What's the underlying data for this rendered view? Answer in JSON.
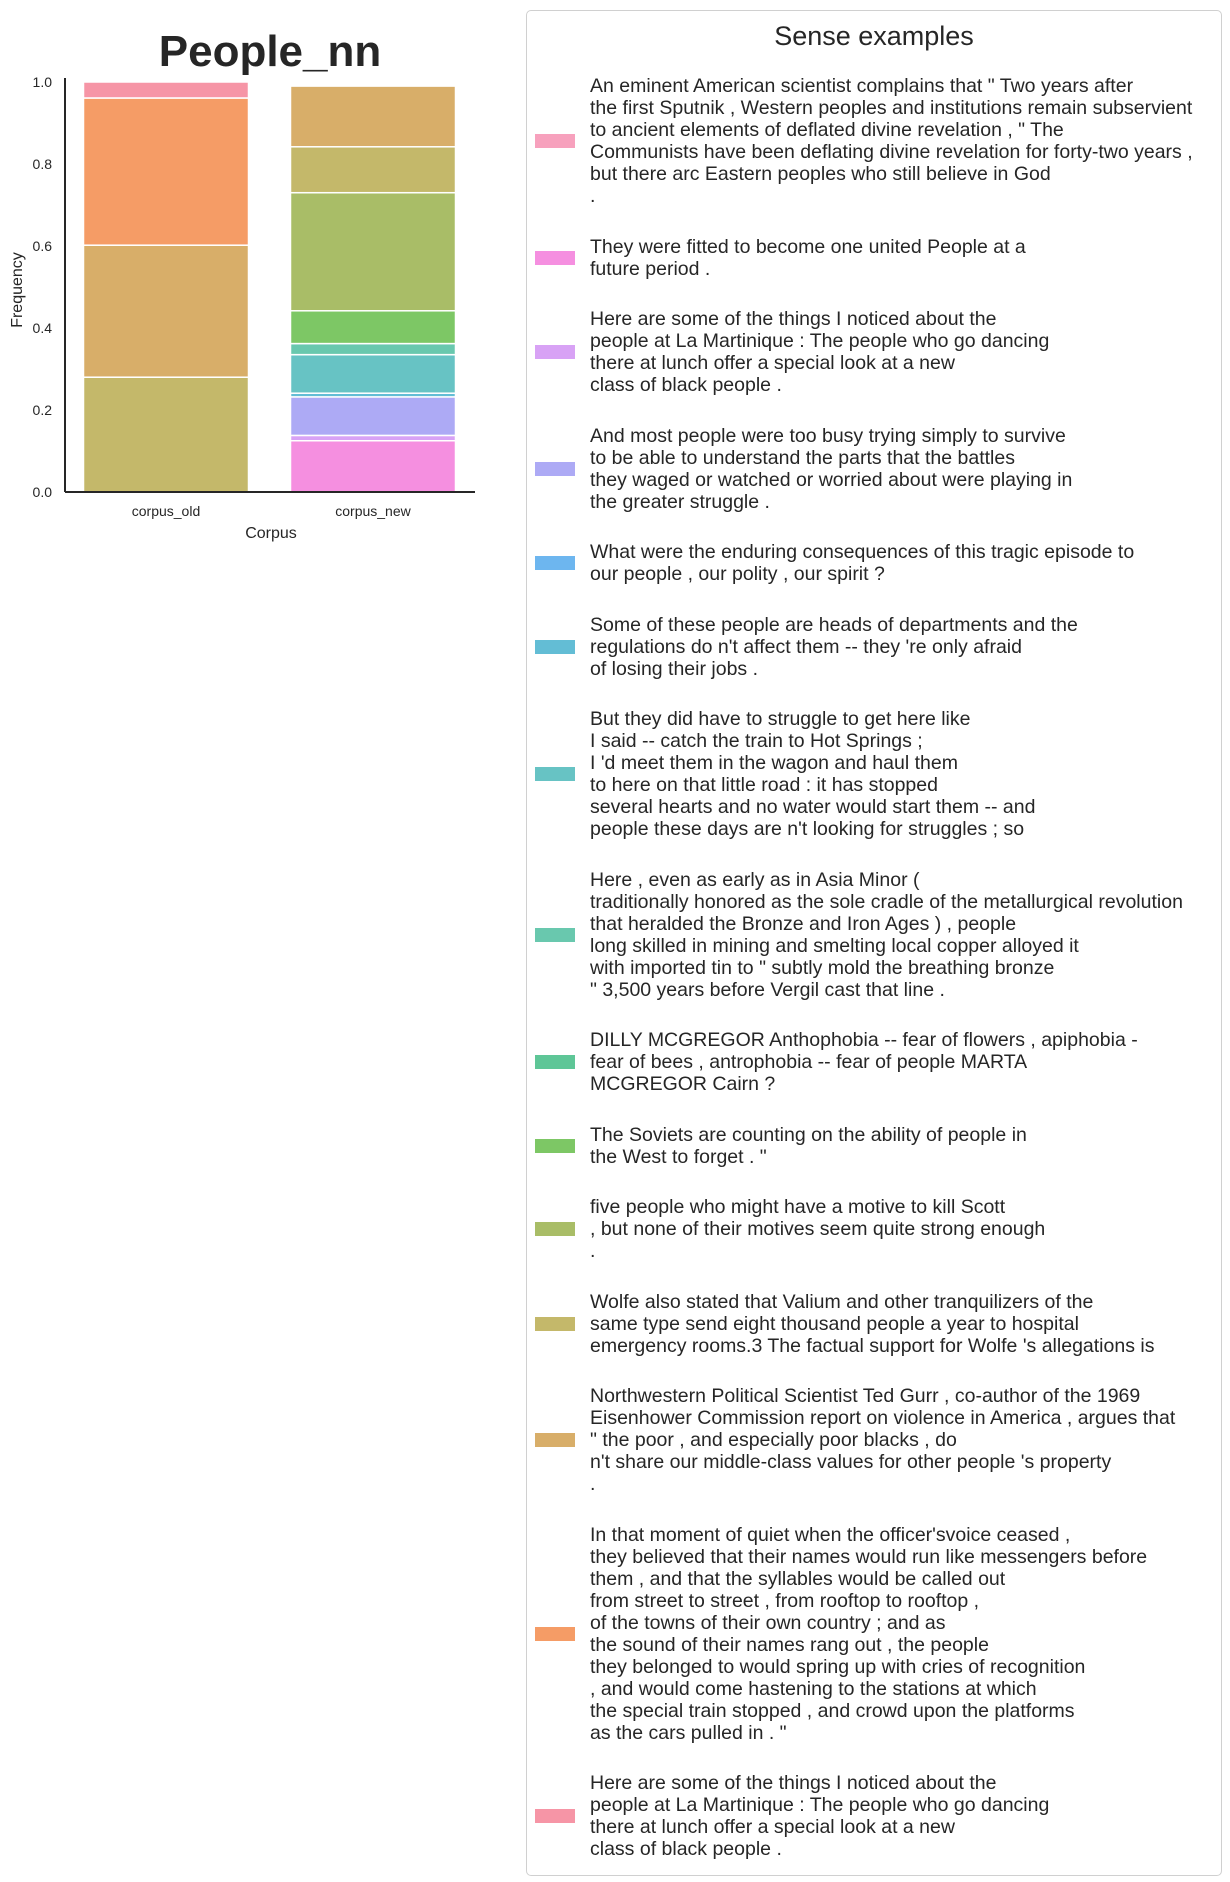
{
  "chart_data": {
    "type": "bar",
    "stacked": true,
    "title": "People_nn",
    "xlabel": "Corpus",
    "ylabel": "Frequency",
    "ylim": [
      0,
      1.0
    ],
    "yticks": [
      "0.0",
      "0.2",
      "0.4",
      "0.6",
      "0.8",
      "1.0"
    ],
    "categories": [
      "corpus_old",
      "corpus_new"
    ],
    "legend_title": "Sense examples",
    "legend_placement": "right",
    "series": [
      {
        "color": "#f7a1bd",
        "values": [
          0.0,
          0.0
        ],
        "name": "An eminent American scientist complains that \" Two years after\nthe first Sputnik , Western peoples and institutions remain subservient\nto ancient elements of deflated divine revelation , \" The\nCommunists have been deflating divine revelation for forty-two years ,\nbut there arc Eastern peoples who still believe in God\n."
      },
      {
        "color": "#f58fe0",
        "values": [
          0.0,
          0.125
        ],
        "name": "They were fitted to become one united People at a\nfuture period ."
      },
      {
        "color": "#d8a2f5",
        "values": [
          0.0,
          0.013
        ],
        "name": "Here are some of the things I noticed about the\npeople at La Martinique : The people who go dancing\nthere at lunch offer a special look at a new\nclass of black people ."
      },
      {
        "color": "#adaaf5",
        "values": [
          0.0,
          0.094
        ],
        "name": "And most people were too busy trying simply to survive\nto be able to understand the parts that the battles\nthey waged or watched or worried about were playing in\nthe greater struggle ."
      },
      {
        "color": "#6db6ef",
        "values": [
          0.0,
          0.0
        ],
        "name": "What were the enduring consequences of this tragic episode to\nour people , our polity , our spirit ?"
      },
      {
        "color": "#63bdd5",
        "values": [
          0.0,
          0.009
        ],
        "name": "Some of these people are heads of departments and the\nregulations do n't affect them -- they 're only afraid\nof losing their jobs ."
      },
      {
        "color": "#67c3c4",
        "values": [
          0.0,
          0.094
        ],
        "name": "But they did have to struggle to get here like\nI said -- catch the train to Hot Springs ;\nI 'd meet them in the wagon and haul them\nto here on that little road : it has stopped\nseveral hearts and no water would start them -- and\npeople these days are n't looking for struggles ; so"
      },
      {
        "color": "#69c8ae",
        "values": [
          0.0,
          0.027
        ],
        "name": "Here , even as early as in Asia Minor (\ntraditionally honored as the sole cradle of the metallurgical revolution\nthat heralded the Bronze and Iron Ages ) , people\nlong skilled in mining and smelting local copper alloyed it\nwith imported tin to \" subtly mold the breathing bronze\n\" 3,500 years before Vergil cast that line ."
      },
      {
        "color": "#5ec697",
        "values": [
          0.0,
          0.0
        ],
        "name": "DILLY MCGREGOR Anthophobia -- fear of flowers , apiphobia -\nfear of bees , antrophobia -- fear of people MARTA\nMCGREGOR Cairn ?"
      },
      {
        "color": "#7dc765",
        "values": [
          0.0,
          0.08
        ],
        "name": "The Soviets are counting on the ability of people in\nthe West to forget . \""
      },
      {
        "color": "#a9bd67",
        "values": [
          0.0,
          0.288
        ],
        "name": "five people who might have a motive to kill Scott\n, but none of their motives seem quite strong enough\n."
      },
      {
        "color": "#c4b86a",
        "values": [
          0.28,
          0.112
        ],
        "name": "Wolfe also stated that Valium and other tranquilizers of the\nsame type send eight thousand people a year to hospital\nemergency rooms.3 The factual support for Wolfe 's allegations is"
      },
      {
        "color": "#d8ae69",
        "values": [
          0.322,
          0.148
        ],
        "name": "Northwestern Political Scientist Ted Gurr , co-author of the 1969\nEisenhower Commission report on violence in America , argues that\n\" the poor , and especially poor blacks , do\nn't share our middle-class values for other people 's property\n."
      },
      {
        "color": "#f59c66",
        "values": [
          0.359,
          0.0
        ],
        "name": "In that moment of quiet when the officer'svoice ceased ,\nthey believed that their names would run like messengers before\nthem , and that the syllables would be called out\nfrom street to street , from rooftop to rooftop ,\nof the towns of their own country ; and as\nthe sound of their names rang out , the people\nthey belonged to would spring up with cries of recognition\n, and would come hastening to the stations at which\nthe special train stopped , and crowd upon the platforms\nas the cars pulled in . \""
      },
      {
        "color": "#f695a6",
        "values": [
          0.039,
          0.0
        ],
        "name": "Here are some of the things I noticed about the\npeople at La Martinique : The people who go dancing\nthere at lunch offer a special look at a new\nclass of black people ."
      }
    ]
  }
}
